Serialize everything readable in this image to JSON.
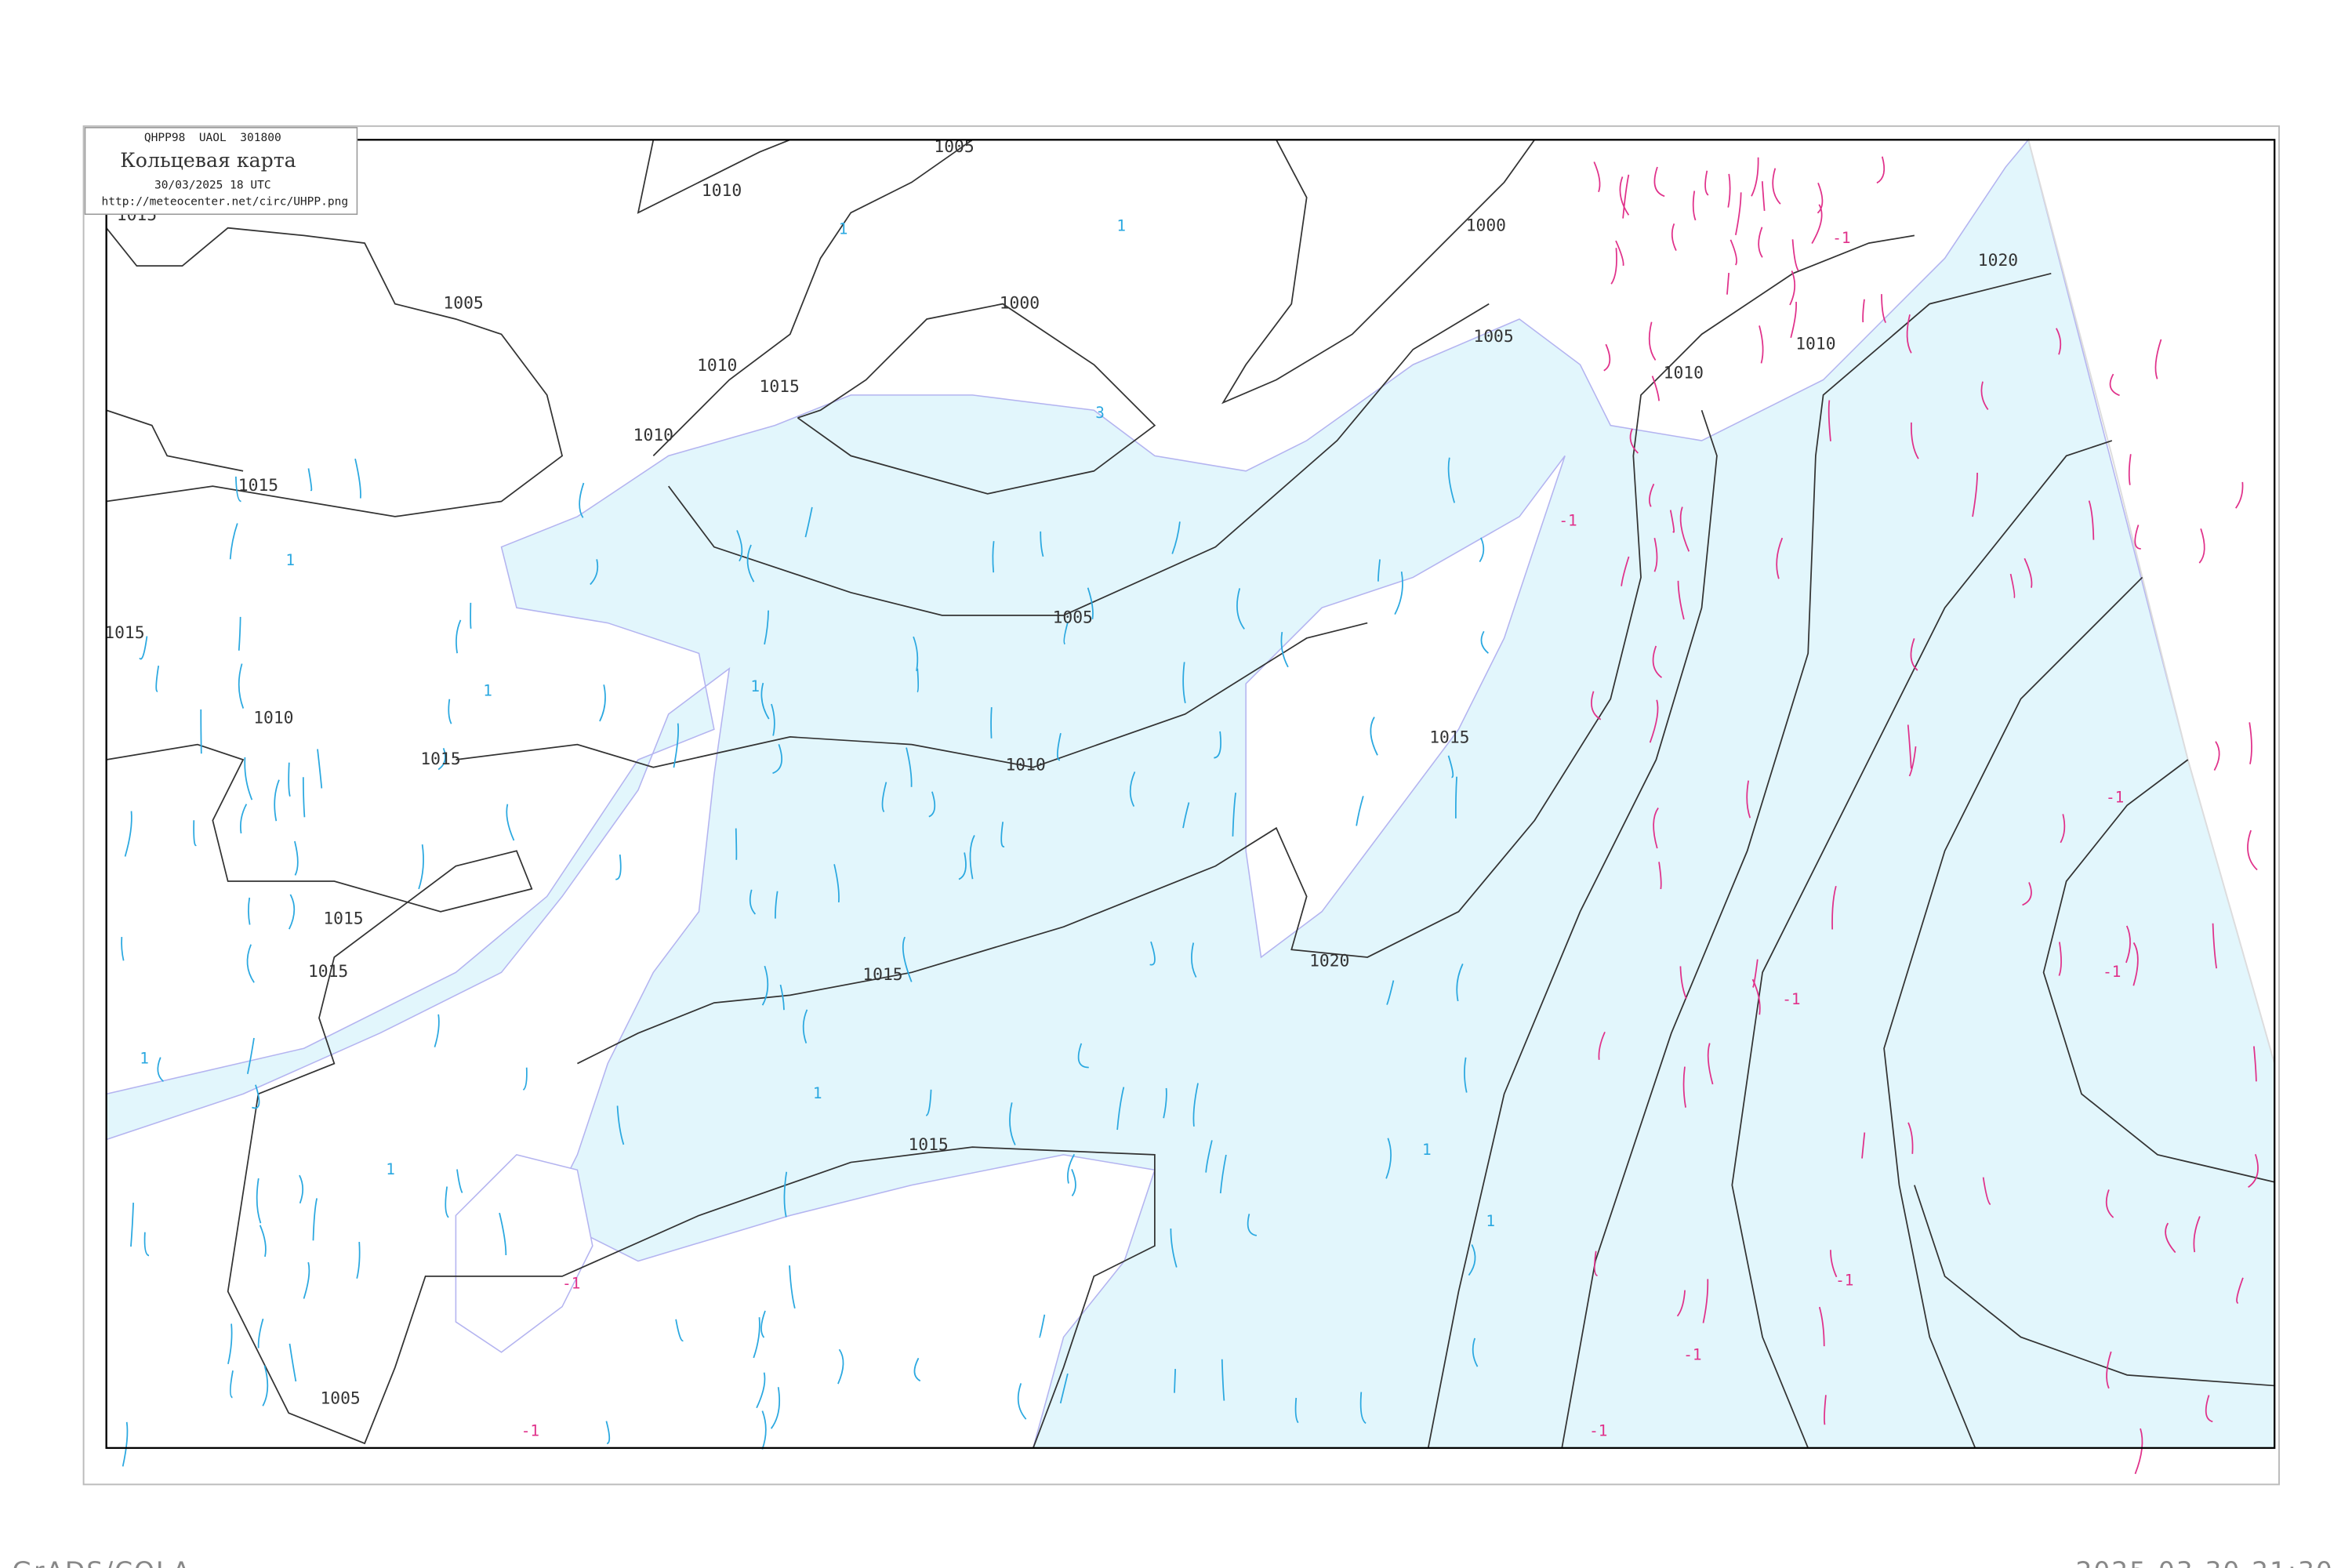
{
  "title_box": {
    "header": "QHPP98  UAOL  301800",
    "title": "Кольцевая карта",
    "datetime": "30/03/2025 18 UTC",
    "url": "http://meteocenter.net/circ/UHPP.png"
  },
  "footer": {
    "left": "GrADS/COLA",
    "right": "2025-03-30-21:30"
  },
  "colors": {
    "sea": "#e2f6fc",
    "land": "#ffffff",
    "coast": "#b4b4f0",
    "isobar": "#333333",
    "positive_contour": "#2aa8e0",
    "negative_contour": "#e0308a"
  },
  "isobar_labels": [
    "1005",
    "1010",
    "1015",
    "1000",
    "1005",
    "1010",
    "1015",
    "1010",
    "1015",
    "1015",
    "1010",
    "1015",
    "1015",
    "1015",
    "1000",
    "1005",
    "1010",
    "1005",
    "1010",
    "1015",
    "1020",
    "1010",
    "1015",
    "1020",
    "1015",
    "1005"
  ],
  "tendency_labels_positive": [
    "1",
    "1",
    "1",
    "1",
    "1",
    "1",
    "1",
    "1",
    "1",
    "1",
    "3"
  ],
  "tendency_labels_negative": [
    "-1",
    "-1",
    "-1",
    "-1",
    "-1",
    "-1",
    "-1",
    "-1",
    "-1",
    "-1"
  ]
}
